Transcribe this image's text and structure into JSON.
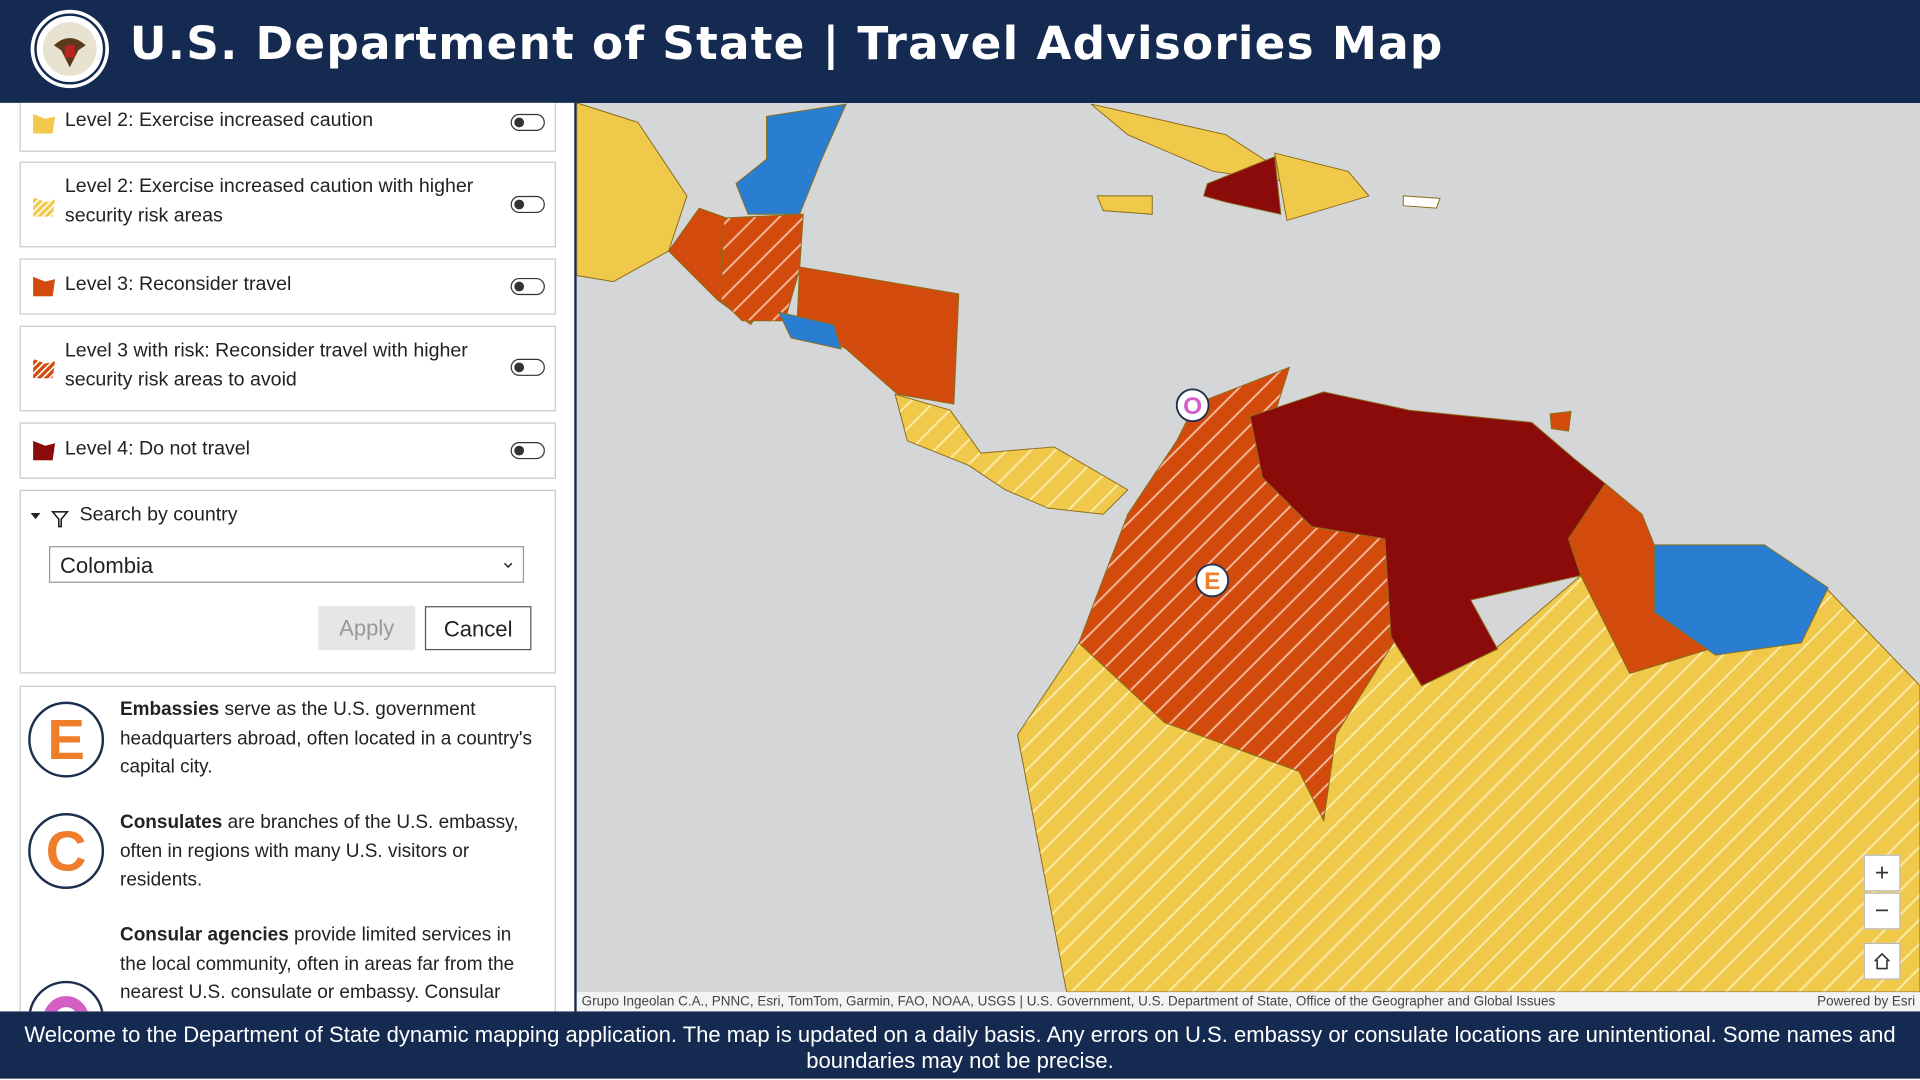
{
  "header": {
    "title": "U.S. Department of State | Travel Advisories Map"
  },
  "layers": [
    {
      "label": "Level 2: Exercise increased caution"
    },
    {
      "label": "Level 2: Exercise increased caution with higher security risk areas"
    },
    {
      "label": "Level 3: Reconsider travel"
    },
    {
      "label": "Level 3 with risk: Reconsider travel with higher security risk areas to avoid"
    },
    {
      "label": "Level 4: Do not travel"
    }
  ],
  "search": {
    "label": "Search by country",
    "selected": "Colombia",
    "apply": "Apply",
    "cancel": "Cancel"
  },
  "legend": [
    {
      "letter": "E",
      "term": "Embassies",
      "text": "serve as the U.S. government headquarters abroad, often located in a country's capital city."
    },
    {
      "letter": "C",
      "term": "Consulates",
      "text": "are branches of the U.S. embassy, often in regions with many U.S. visitors or residents."
    },
    {
      "term": "Consular agencies",
      "text": "provide limited services in the local community, often in areas far from the nearest U.S. consulate or embassy. Consular"
    }
  ],
  "map": {
    "markers": [
      {
        "label": "O"
      },
      {
        "label": "E"
      }
    ],
    "attribution": "Grupo Ingeolan C.A., PNNC, Esri, TomTom, Garmin, FAO, NOAA, USGS | U.S. Government, U.S. Department of State, Office of the Geographer and Global Issues",
    "powered_by": "Powered by Esri",
    "zoom_in": "+",
    "zoom_out": "−"
  },
  "footer": {
    "text": "Welcome to the Department of State dynamic mapping application. The map is updated on a daily basis.  Any errors on U.S. embassy or consulate locations are unintentional. Some names and boundaries may not be precise."
  }
}
